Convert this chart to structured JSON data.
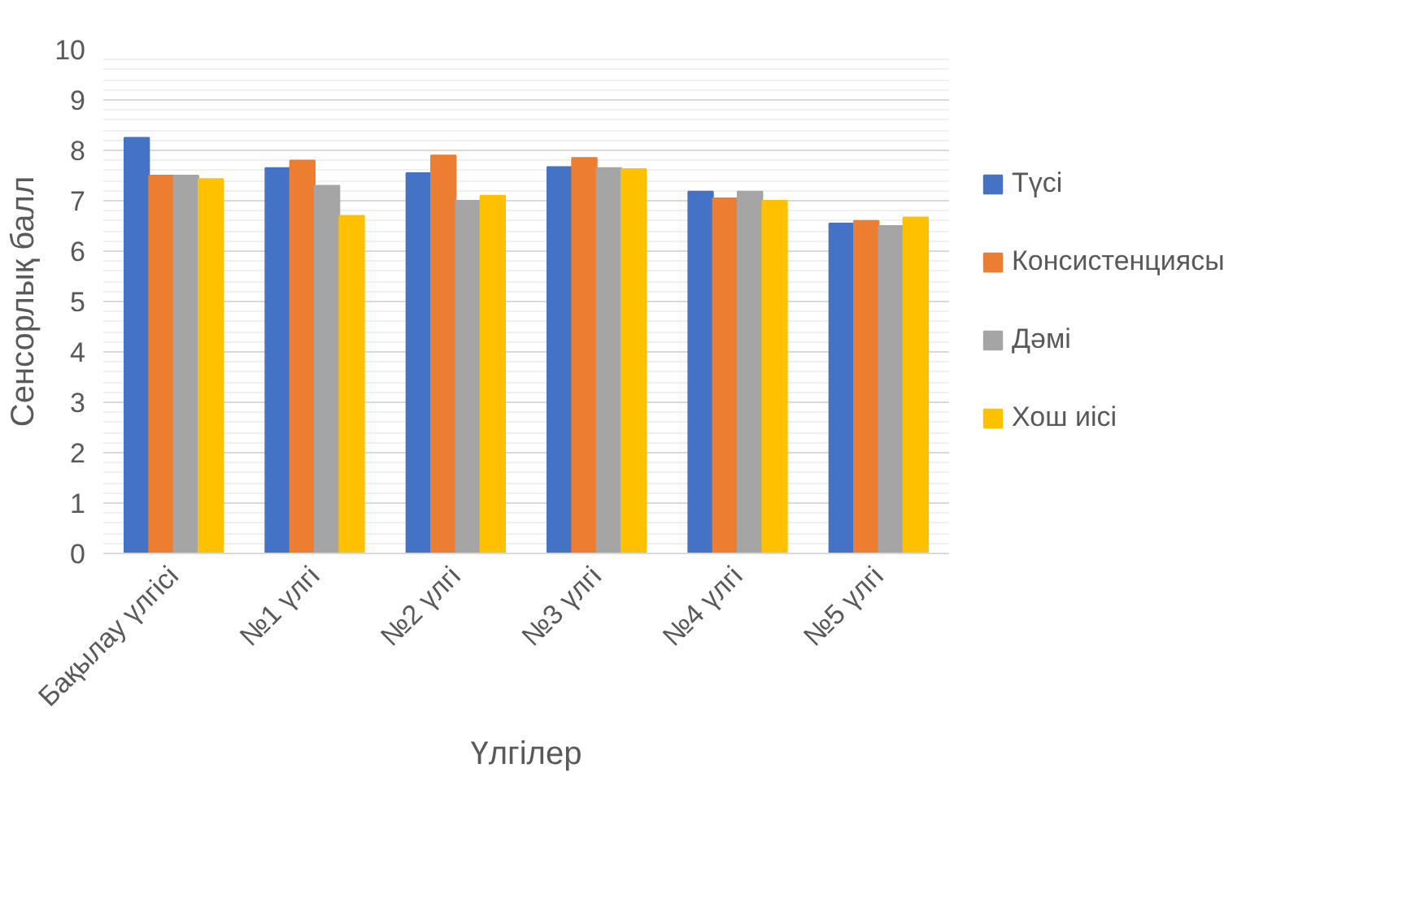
{
  "chart_data": {
    "type": "bar",
    "xlabel": "Үлгілер",
    "ylabel": "Сенсорлық балл",
    "categories": [
      "Бақылау үлгісі",
      "№1 үлгі",
      "№2 үлгі",
      "№3 үлгі",
      "№4 үлгі",
      "№5 үлгі"
    ],
    "series": [
      {
        "name": "Түсі",
        "color": "#4472c4",
        "values": [
          8.25,
          7.65,
          7.55,
          7.67,
          7.18,
          6.55
        ]
      },
      {
        "name": "Консистенциясы",
        "color": "#ed7d31",
        "values": [
          7.5,
          7.8,
          7.9,
          7.85,
          7.05,
          6.6
        ]
      },
      {
        "name": "Дәмі",
        "color": "#a5a5a5",
        "values": [
          7.5,
          7.3,
          7.0,
          7.65,
          7.18,
          6.5
        ]
      },
      {
        "name": "Хош иісі",
        "color": "#ffc000",
        "values": [
          7.43,
          6.7,
          7.1,
          7.63,
          7.0,
          6.67
        ]
      }
    ],
    "ylim": [
      0,
      10
    ],
    "yticks": [
      0,
      1,
      2,
      3,
      4,
      5,
      6,
      7,
      8,
      9,
      10
    ],
    "grid": "y",
    "legend": "right"
  }
}
